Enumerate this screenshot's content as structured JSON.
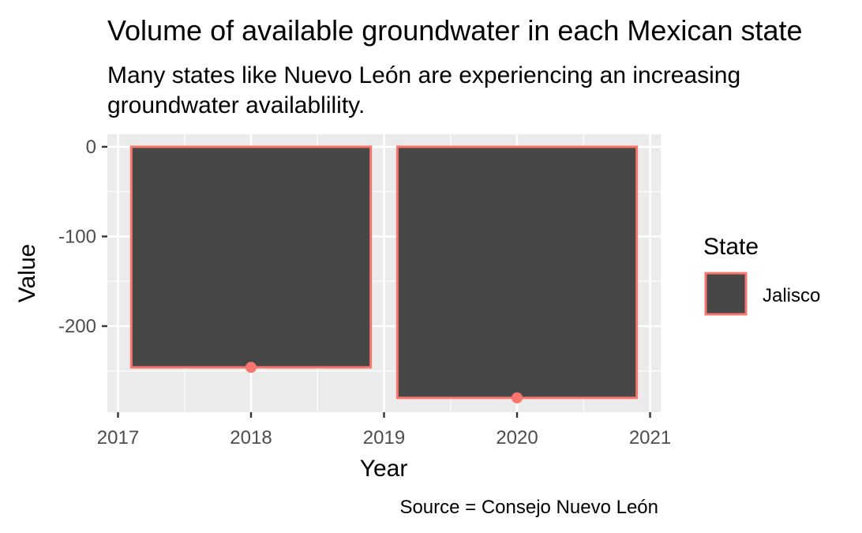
{
  "chart_data": {
    "type": "bar",
    "title": "Volume of available groundwater in each Mexican state",
    "subtitle_lines": [
      "Many states like Nuevo León are experiencing an increasing",
      "groundwater availablility."
    ],
    "caption": "Source = Consejo Nuevo León",
    "xlabel": "Year",
    "ylabel": "Value",
    "x": [
      2018,
      2020
    ],
    "series": [
      {
        "name": "Jalisco",
        "values": [
          -246,
          -280
        ]
      }
    ],
    "xlim": [
      2016.92,
      2021.08
    ],
    "ylim": [
      -296,
      14
    ],
    "x_ticks": [
      2017,
      2018,
      2019,
      2020,
      2021
    ],
    "y_ticks": [
      0,
      -100,
      -200
    ],
    "grid": true,
    "legend": {
      "title": "State",
      "position": "right"
    },
    "colors": {
      "panel_bg": "#EBEBEB",
      "grid": "#FFFFFF",
      "bar_fill": "#474747",
      "bar_outline": "#F8766D",
      "point": "#F8766D",
      "text": "#000000",
      "tick_text": "#4D4D4D",
      "tick_mark": "#333333"
    }
  }
}
